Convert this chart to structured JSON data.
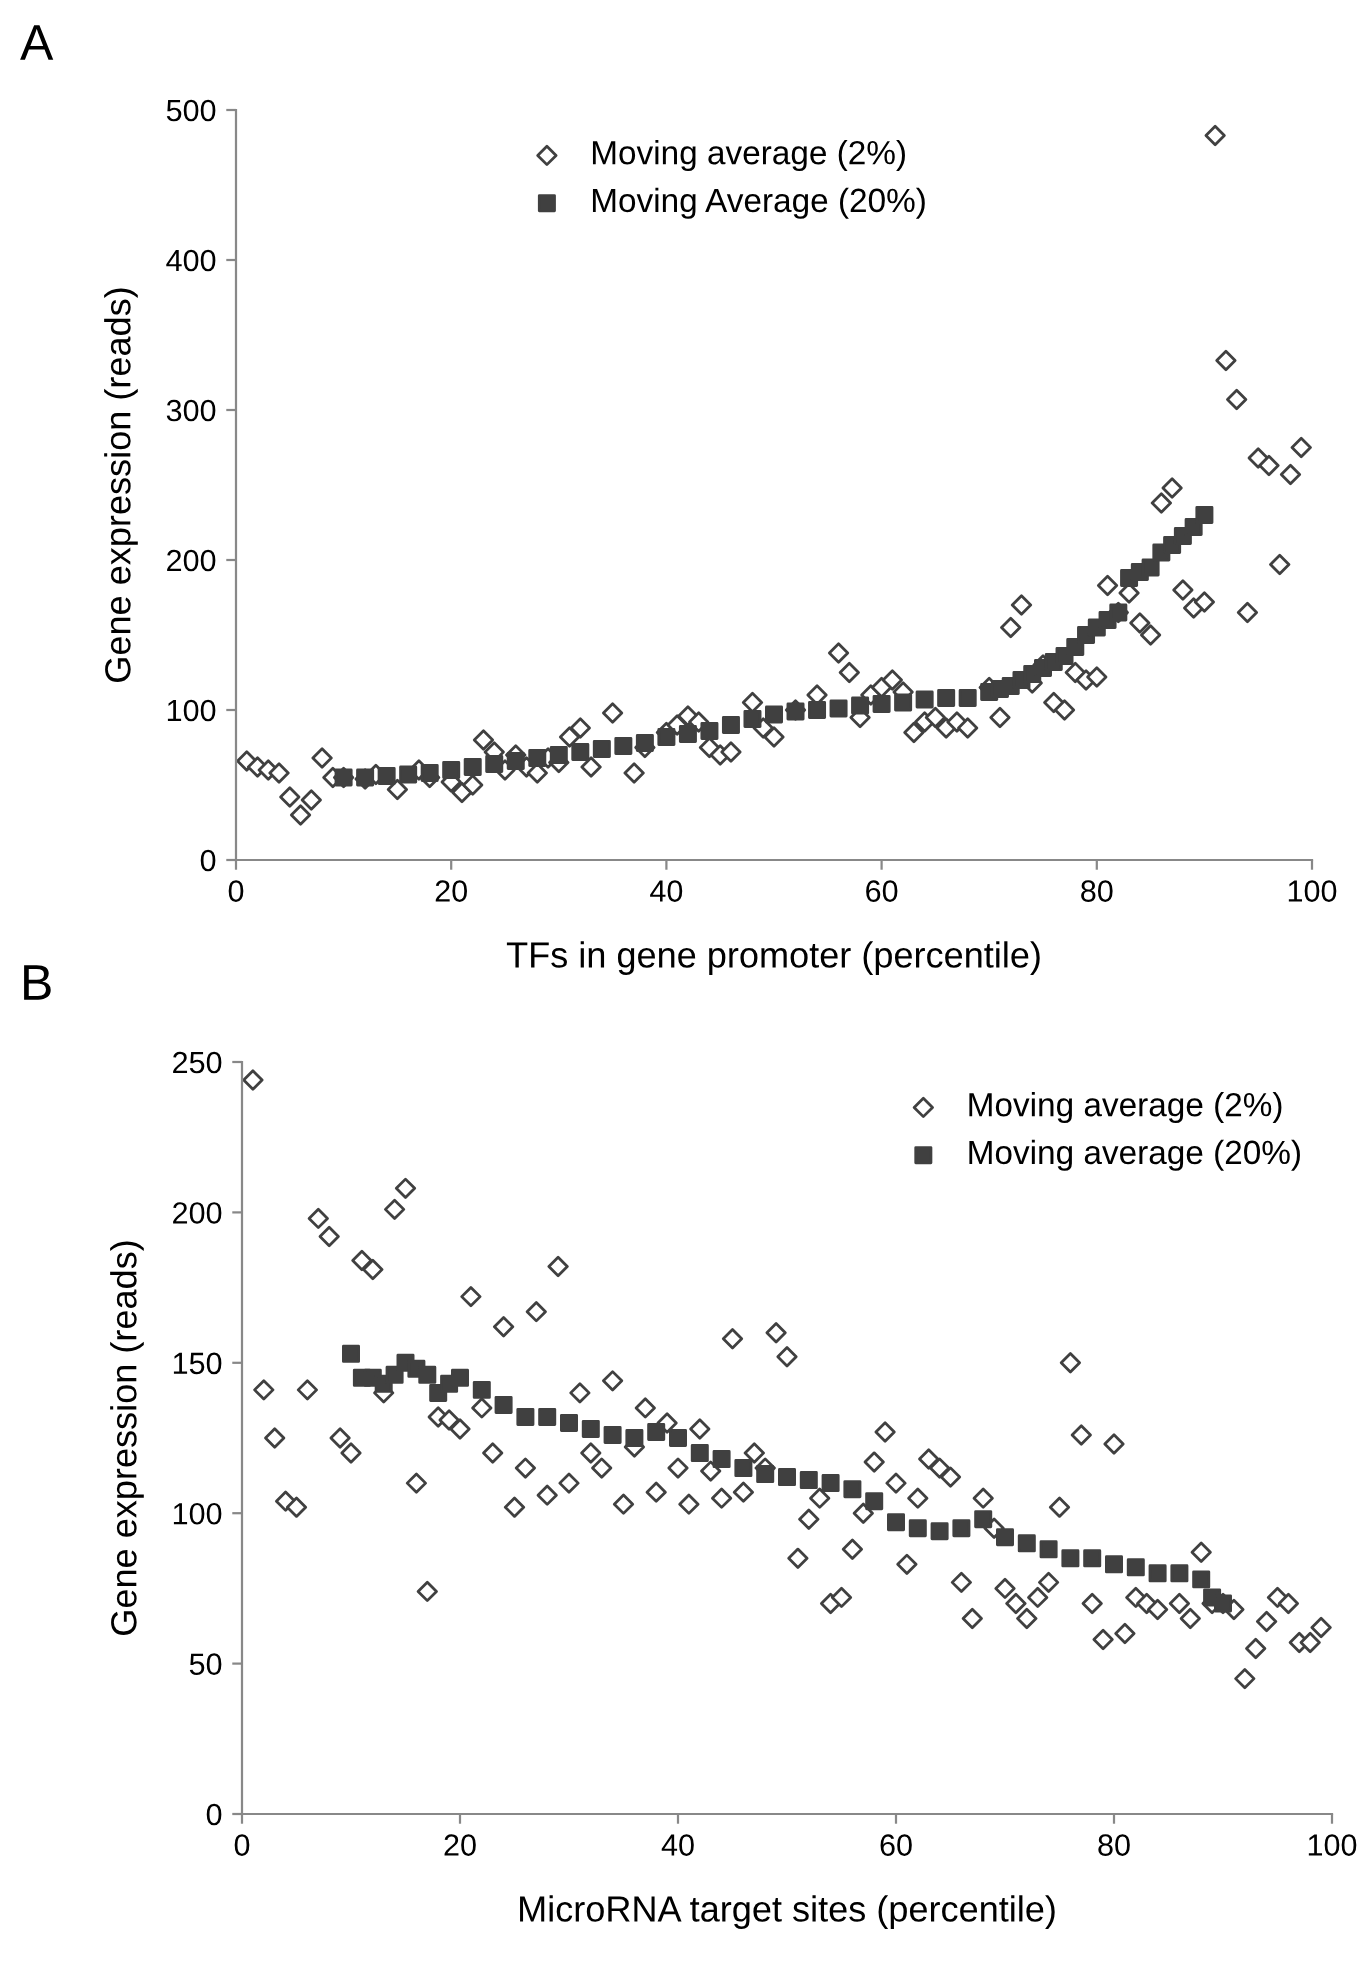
{
  "chart_data": [
    {
      "type": "scatter",
      "annotations": [
        "A"
      ],
      "xlabel": "TFs in gene promoter (percentile)",
      "ylabel": "Gene expression (reads)",
      "xlim": [
        0,
        100
      ],
      "xticks": [
        0,
        20,
        40,
        60,
        80,
        100
      ],
      "ylim": [
        0,
        500
      ],
      "yticks": [
        0,
        100,
        200,
        300,
        400,
        500
      ],
      "legend": "top",
      "grid": false,
      "series": [
        {
          "name": "Moving average (2%)",
          "color": "#404040",
          "marker": "diamond",
          "x": [
            1,
            2,
            3,
            4,
            5,
            6,
            7,
            8,
            9,
            10,
            12,
            13,
            15,
            17,
            18,
            20,
            21,
            22,
            23,
            24,
            25,
            26,
            27,
            28,
            29,
            30,
            31,
            32,
            33,
            35,
            37,
            38,
            40,
            41,
            42,
            43,
            44,
            45,
            46,
            48,
            49,
            50,
            52,
            54,
            56,
            57,
            58,
            59,
            60,
            61,
            62,
            63,
            64,
            65,
            66,
            67,
            68,
            70,
            71,
            72,
            73,
            74,
            75,
            76,
            77,
            78,
            79,
            80,
            81,
            82,
            83,
            84,
            85,
            86,
            87,
            88,
            89,
            90,
            91,
            92,
            93,
            94,
            95,
            96,
            97,
            98,
            99
          ],
          "values": [
            66,
            62,
            60,
            58,
            42,
            30,
            40,
            68,
            55,
            55,
            54,
            57,
            47,
            60,
            55,
            52,
            45,
            50,
            80,
            72,
            60,
            70,
            62,
            58,
            68,
            65,
            82,
            88,
            62,
            98,
            58,
            75,
            85,
            90,
            96,
            92,
            75,
            70,
            72,
            105,
            88,
            82,
            100,
            110,
            138,
            125,
            95,
            110,
            115,
            120,
            112,
            85,
            92,
            95,
            88,
            92,
            88,
            115,
            95,
            155,
            170,
            118,
            130,
            105,
            100,
            125,
            120,
            122,
            183,
            165,
            178,
            158,
            150,
            238,
            248,
            180,
            168,
            172,
            483,
            333,
            307,
            165,
            268,
            263,
            197,
            257,
            275
          ]
        },
        {
          "name": "Moving Average (20%)",
          "color": "#404040",
          "marker": "square",
          "x": [
            10,
            12,
            14,
            16,
            18,
            20,
            22,
            24,
            26,
            28,
            30,
            32,
            34,
            36,
            38,
            40,
            42,
            44,
            46,
            48,
            50,
            52,
            54,
            56,
            58,
            60,
            62,
            64,
            66,
            68,
            70,
            71,
            72,
            73,
            74,
            75,
            76,
            77,
            78,
            79,
            80,
            81,
            82,
            83,
            84,
            85,
            86,
            87,
            88,
            89,
            90
          ],
          "values": [
            55,
            55,
            56,
            57,
            58,
            60,
            62,
            64,
            66,
            68,
            70,
            72,
            74,
            76,
            78,
            82,
            84,
            86,
            90,
            94,
            97,
            99,
            100,
            101,
            103,
            104,
            105,
            107,
            108,
            108,
            112,
            114,
            116,
            120,
            124,
            128,
            132,
            136,
            142,
            150,
            155,
            160,
            165,
            188,
            192,
            195,
            205,
            210,
            216,
            222,
            230
          ]
        }
      ]
    },
    {
      "type": "scatter",
      "annotations": [
        "B"
      ],
      "xlabel": "MicroRNA target sites (percentile)",
      "ylabel": "Gene expression (reads)",
      "xlim": [
        0,
        100
      ],
      "xticks": [
        0,
        20,
        40,
        60,
        80,
        100
      ],
      "ylim": [
        0,
        250
      ],
      "yticks": [
        0,
        50,
        100,
        150,
        200,
        250
      ],
      "legend": "top right",
      "grid": false,
      "series": [
        {
          "name": "Moving average (2%)",
          "color": "#404040",
          "marker": "diamond",
          "x": [
            1,
            2,
            3,
            4,
            5,
            6,
            7,
            8,
            9,
            10,
            11,
            12,
            13,
            14,
            15,
            16,
            17,
            18,
            19,
            20,
            21,
            22,
            23,
            24,
            25,
            26,
            27,
            28,
            29,
            30,
            31,
            32,
            33,
            34,
            35,
            36,
            37,
            38,
            39,
            40,
            41,
            42,
            43,
            44,
            45,
            46,
            47,
            48,
            49,
            50,
            51,
            52,
            53,
            54,
            55,
            56,
            57,
            58,
            59,
            60,
            61,
            62,
            63,
            64,
            65,
            66,
            67,
            68,
            69,
            70,
            71,
            72,
            73,
            74,
            75,
            76,
            77,
            78,
            79,
            80,
            81,
            82,
            83,
            84,
            86,
            87,
            88,
            89,
            90,
            91,
            92,
            93,
            94,
            95,
            96,
            97,
            98,
            99
          ],
          "values": [
            244,
            141,
            125,
            104,
            102,
            141,
            198,
            192,
            125,
            120,
            184,
            181,
            140,
            201,
            208,
            110,
            74,
            132,
            131,
            128,
            172,
            135,
            120,
            162,
            102,
            115,
            167,
            106,
            182,
            110,
            140,
            120,
            115,
            144,
            103,
            122,
            135,
            107,
            130,
            115,
            103,
            128,
            114,
            105,
            158,
            107,
            120,
            115,
            160,
            152,
            85,
            98,
            105,
            70,
            72,
            88,
            100,
            117,
            127,
            110,
            83,
            105,
            118,
            115,
            112,
            77,
            65,
            105,
            95,
            75,
            70,
            65,
            72,
            77,
            102,
            150,
            126,
            70,
            58,
            123,
            60,
            72,
            70,
            68,
            70,
            65,
            87,
            70,
            70,
            68,
            45,
            55,
            64,
            72,
            70,
            57,
            57,
            62
          ]
        },
        {
          "name": "Moving average (20%)",
          "color": "#404040",
          "marker": "square",
          "x": [
            10,
            11,
            12,
            13,
            14,
            15,
            16,
            17,
            18,
            19,
            20,
            22,
            24,
            26,
            28,
            30,
            32,
            34,
            36,
            38,
            40,
            42,
            44,
            46,
            48,
            50,
            52,
            54,
            56,
            58,
            60,
            62,
            64,
            66,
            68,
            70,
            72,
            74,
            76,
            78,
            80,
            82,
            84,
            86,
            88,
            89,
            90
          ],
          "values": [
            153,
            145,
            145,
            143,
            146,
            150,
            148,
            146,
            140,
            143,
            145,
            141,
            136,
            132,
            132,
            130,
            128,
            126,
            125,
            127,
            125,
            120,
            118,
            115,
            113,
            112,
            111,
            110,
            108,
            104,
            97,
            95,
            94,
            95,
            98,
            92,
            90,
            88,
            85,
            85,
            83,
            82,
            80,
            80,
            78,
            72,
            70
          ]
        }
      ]
    }
  ]
}
